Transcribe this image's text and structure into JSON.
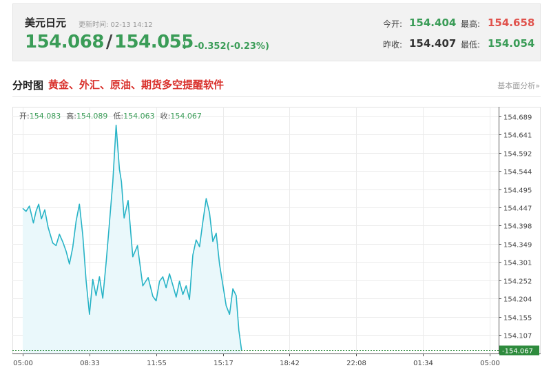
{
  "quote": {
    "pair": "美元日元",
    "update_label": "更新时间: 02-13 14:12",
    "bid": "154.068",
    "separator": "/",
    "ask": "154.055",
    "arrow": "↓",
    "change": "-0.352(-0.23%)",
    "open_label": "今开:",
    "open_value": "154.404",
    "high_label": "最高:",
    "high_value": "154.658",
    "prev_close_label": "昨收:",
    "prev_close_value": "154.407",
    "low_label": "最低:",
    "low_value": "154.054"
  },
  "section": {
    "title": "分时图",
    "promo": "黄金、外汇、原油、期货多空提醒软件",
    "fundamentals_link": "基本面分析»"
  },
  "colors": {
    "up": "#e0524c",
    "down": "#3a9c57",
    "line": "#27b3c6",
    "fill": "#eaf8fb",
    "current_badge": "#2e8b3d"
  },
  "chart_data": {
    "type": "area",
    "ohlc": [
      {
        "label": "开:",
        "value": "154.083"
      },
      {
        "label": "高:",
        "value": "154.089"
      },
      {
        "label": "低:",
        "value": "154.063"
      },
      {
        "label": "收:",
        "value": "154.067"
      }
    ],
    "ylim": [
      154.058,
      154.714
    ],
    "y_ticks": [
      "154.689",
      "154.641",
      "154.592",
      "154.544",
      "154.495",
      "154.447",
      "154.398",
      "154.349",
      "154.301",
      "154.252",
      "154.204",
      "154.155",
      "154.107"
    ],
    "current_price": "154.067",
    "x_ticks": [
      "05:00",
      "08:33",
      "11:55",
      "15:17",
      "18:42",
      "22:08",
      "01:34",
      "05:00"
    ],
    "x_range": [
      0,
      7
    ],
    "grid": true,
    "series": [
      {
        "x": [
          0.0,
          0.05,
          0.1,
          0.16,
          0.2,
          0.24,
          0.28,
          0.33,
          0.38,
          0.45,
          0.5,
          0.55,
          0.6,
          0.65,
          0.7,
          0.75,
          0.8,
          0.85,
          0.9,
          0.95,
          1.0,
          1.05,
          1.1,
          1.15,
          1.2,
          1.25,
          1.3,
          1.35,
          1.4,
          1.45,
          1.48,
          1.52,
          1.58,
          1.65,
          1.72,
          1.8,
          1.88,
          1.95,
          2.0,
          2.05,
          2.1,
          2.15,
          2.2,
          2.25,
          2.3,
          2.35,
          2.4,
          2.45,
          2.5,
          2.55,
          2.6,
          2.65,
          2.7,
          2.75,
          2.8,
          2.85,
          2.9,
          2.95,
          3.0,
          3.05,
          3.1,
          3.15,
          3.2,
          3.24,
          3.28
        ],
        "values": [
          154.444,
          154.436,
          154.45,
          154.405,
          154.437,
          154.455,
          154.416,
          154.44,
          154.394,
          154.352,
          154.345,
          154.375,
          154.355,
          154.33,
          154.296,
          154.34,
          154.41,
          154.455,
          154.372,
          154.252,
          154.162,
          154.255,
          154.212,
          154.262,
          154.205,
          154.3,
          154.405,
          154.515,
          154.665,
          154.548,
          154.515,
          154.418,
          154.465,
          154.315,
          154.345,
          154.238,
          154.26,
          154.21,
          154.198,
          154.25,
          154.262,
          154.233,
          154.27,
          154.24,
          154.208,
          154.25,
          154.215,
          154.238,
          154.202,
          154.32,
          154.36,
          154.342,
          154.408,
          154.47,
          154.432,
          154.356,
          154.378,
          154.296,
          154.24,
          154.185,
          154.162,
          154.23,
          154.212,
          154.12,
          154.067
        ]
      }
    ]
  }
}
